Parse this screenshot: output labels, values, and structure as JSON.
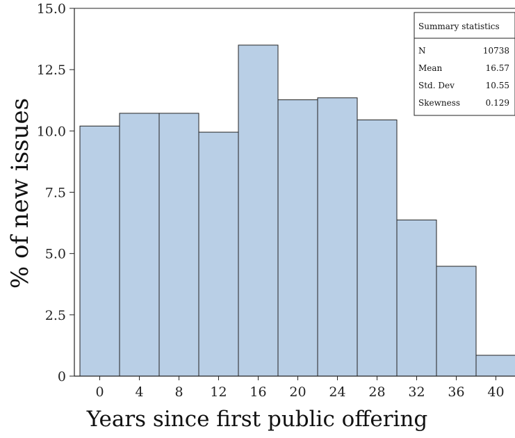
{
  "chart_data": {
    "type": "bar",
    "categories": [
      "0",
      "4",
      "8",
      "12",
      "16",
      "20",
      "24",
      "28",
      "32",
      "36",
      "40"
    ],
    "x": [
      0,
      4,
      8,
      12,
      16,
      20,
      24,
      28,
      32,
      36,
      40
    ],
    "values": [
      10.2,
      10.72,
      10.72,
      9.95,
      13.5,
      11.27,
      11.35,
      10.45,
      6.37,
      4.48,
      0.85
    ],
    "title": "",
    "xlabel": "Years since first public offering",
    "ylabel": "% of new issues",
    "ylim": [
      0,
      15
    ],
    "yticks": [
      "0",
      "2.5",
      "5.0",
      "7.5",
      "10.0",
      "12.5",
      "15.0"
    ],
    "ytick_values": [
      0,
      2.5,
      5,
      7.5,
      10,
      12.5,
      15
    ],
    "grid": false,
    "bar_color": "#b9cfe6",
    "bar_edge_color": "#222222",
    "legend": "none"
  },
  "summary_box": {
    "title": "Summary statistics",
    "placement": "top-right",
    "rows": [
      {
        "label": "N",
        "value": "10738"
      },
      {
        "label": "Mean",
        "value": "16.57"
      },
      {
        "label": "Std. Dev",
        "value": "10.55"
      },
      {
        "label": "Skewness",
        "value": "0.129"
      }
    ]
  }
}
